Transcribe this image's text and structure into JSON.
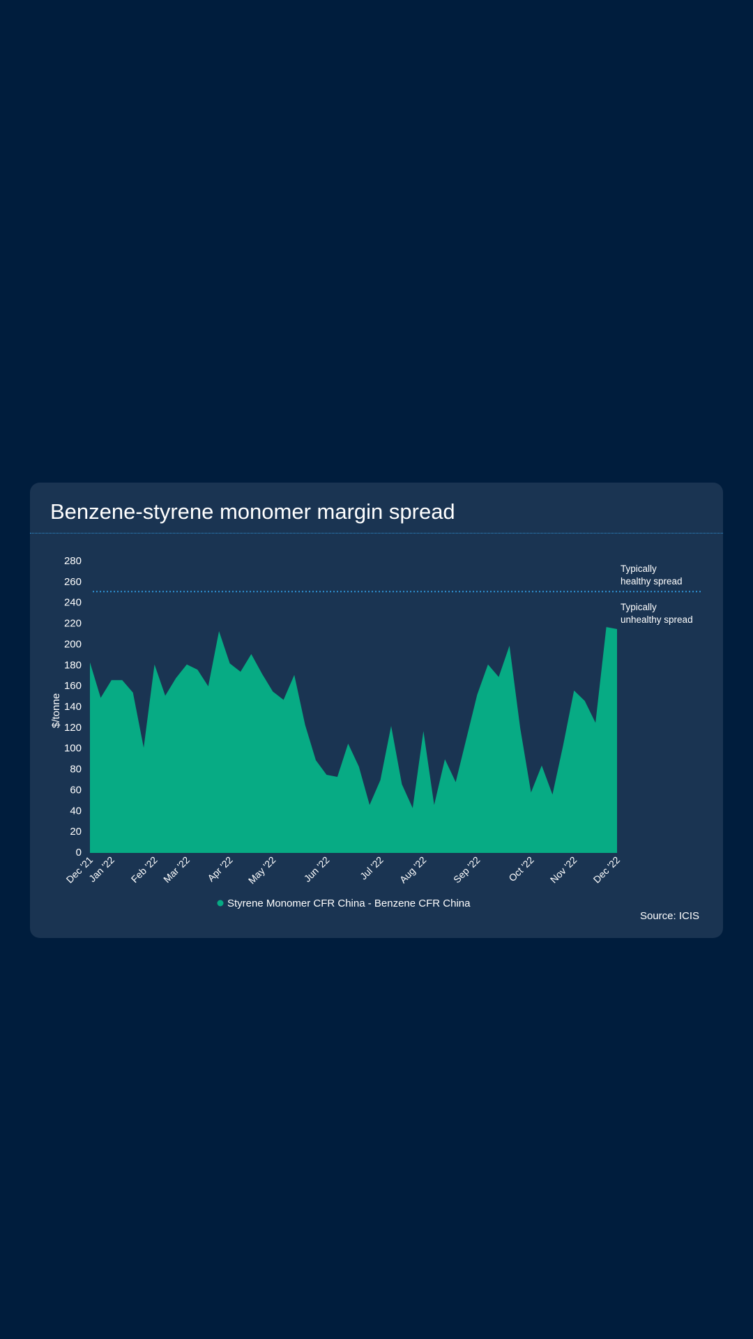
{
  "page": {
    "background": "#001d3d",
    "card_background": "#1a3452"
  },
  "card": {
    "title": "Benzene-styrene monomer margin spread",
    "source": "Source: ICIS"
  },
  "chart_data": {
    "type": "area",
    "title": "Benzene-styrene monomer margin spread",
    "ylabel": "$/tonne",
    "xlabel": "",
    "ylim": [
      0,
      280
    ],
    "yticks": [
      0,
      20,
      40,
      60,
      80,
      100,
      120,
      140,
      160,
      180,
      200,
      220,
      240,
      260,
      280
    ],
    "xticks": [
      "Dec '21",
      "Jan '22",
      "Feb '22",
      "Mar '22",
      "Apr '22",
      "May '22",
      "Jun '22",
      "Jul '22",
      "Aug '22",
      "Sep '22",
      "Oct '22",
      "Nov '22",
      "Dec '22"
    ],
    "grid": false,
    "legend_position": "bottom",
    "series": [
      {
        "name": "Styrene Monomer CFR China - Benzene CFR China",
        "color": "#07ab84",
        "points": [
          {
            "x": "Dec '21",
            "y": 183
          },
          {
            "x": "",
            "y": 149
          },
          {
            "x": "Jan '22",
            "y": 166
          },
          {
            "x": "",
            "y": 166
          },
          {
            "x": "",
            "y": 154
          },
          {
            "x": "",
            "y": 101
          },
          {
            "x": "Feb '22",
            "y": 181
          },
          {
            "x": "",
            "y": 151
          },
          {
            "x": "",
            "y": 168
          },
          {
            "x": "Mar '22",
            "y": 181
          },
          {
            "x": "",
            "y": 176
          },
          {
            "x": "",
            "y": 160
          },
          {
            "x": "",
            "y": 213
          },
          {
            "x": "Apr '22",
            "y": 182
          },
          {
            "x": "",
            "y": 174
          },
          {
            "x": "",
            "y": 191
          },
          {
            "x": "",
            "y": 172
          },
          {
            "x": "May '22",
            "y": 155
          },
          {
            "x": "",
            "y": 147
          },
          {
            "x": "",
            "y": 171
          },
          {
            "x": "",
            "y": 123
          },
          {
            "x": "",
            "y": 89
          },
          {
            "x": "Jun '22",
            "y": 75
          },
          {
            "x": "",
            "y": 73
          },
          {
            "x": "",
            "y": 105
          },
          {
            "x": "",
            "y": 83
          },
          {
            "x": "",
            "y": 46
          },
          {
            "x": "Jul '22",
            "y": 70
          },
          {
            "x": "",
            "y": 122
          },
          {
            "x": "",
            "y": 66
          },
          {
            "x": "",
            "y": 43
          },
          {
            "x": "Aug '22",
            "y": 117
          },
          {
            "x": "",
            "y": 46
          },
          {
            "x": "",
            "y": 90
          },
          {
            "x": "",
            "y": 68
          },
          {
            "x": "",
            "y": 110
          },
          {
            "x": "Sep '22",
            "y": 152
          },
          {
            "x": "",
            "y": 181
          },
          {
            "x": "",
            "y": 169
          },
          {
            "x": "",
            "y": 199
          },
          {
            "x": "",
            "y": 120
          },
          {
            "x": "Oct '22",
            "y": 58
          },
          {
            "x": "",
            "y": 84
          },
          {
            "x": "",
            "y": 56
          },
          {
            "x": "",
            "y": 104
          },
          {
            "x": "Nov '22",
            "y": 156
          },
          {
            "x": "",
            "y": 146
          },
          {
            "x": "",
            "y": 125
          },
          {
            "x": "",
            "y": 217
          },
          {
            "x": "Dec '22",
            "y": 215
          }
        ]
      }
    ],
    "reference_line": {
      "y": 251,
      "color": "#2f93d6",
      "label_above": "Typically healthy spread",
      "label_below": "Typically unhealthy spread"
    }
  }
}
